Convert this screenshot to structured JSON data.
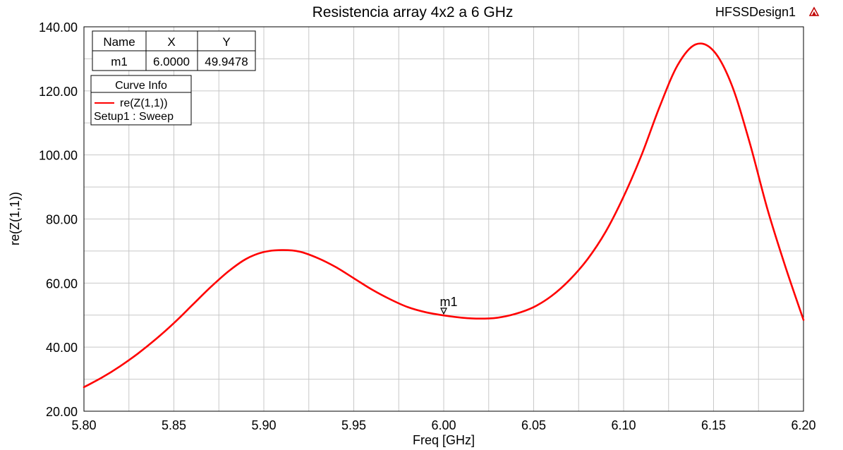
{
  "app": {
    "design_name": "HFSSDesign1",
    "logo_icon": "ansys-logo-icon"
  },
  "chart_data": {
    "type": "line",
    "title": "Resistencia array 4x2 a 6 GHz",
    "xlabel": "Freq [GHz]",
    "ylabel": "re(Z(1,1))",
    "xlim": [
      5.8,
      6.2
    ],
    "ylim": [
      20,
      140
    ],
    "grid": true,
    "x_ticks": [
      5.8,
      5.85,
      5.9,
      5.95,
      6.0,
      6.05,
      6.1,
      6.15,
      6.2
    ],
    "x_tick_labels": [
      "5.80",
      "5.85",
      "5.90",
      "5.95",
      "6.00",
      "6.05",
      "6.10",
      "6.15",
      "6.20"
    ],
    "y_ticks": [
      20,
      40,
      60,
      80,
      100,
      120,
      140
    ],
    "y_tick_labels": [
      "20.00",
      "40.00",
      "60.00",
      "80.00",
      "100.00",
      "120.00",
      "140.00"
    ],
    "series": [
      {
        "name": "re(Z(1,1))",
        "setup": "Setup1 : Sweep",
        "color": "#ff0000",
        "x": [
          5.8,
          5.81,
          5.82,
          5.83,
          5.84,
          5.85,
          5.86,
          5.87,
          5.88,
          5.89,
          5.9,
          5.91,
          5.92,
          5.93,
          5.94,
          5.95,
          5.96,
          5.97,
          5.98,
          5.99,
          6.0,
          6.01,
          6.02,
          6.03,
          6.04,
          6.05,
          6.06,
          6.07,
          6.08,
          6.09,
          6.1,
          6.11,
          6.12,
          6.13,
          6.14,
          6.15,
          6.16,
          6.17,
          6.18,
          6.19,
          6.2
        ],
        "y": [
          27.5,
          30.5,
          34.0,
          38.0,
          42.5,
          47.5,
          53.0,
          58.5,
          63.5,
          67.5,
          69.7,
          70.3,
          69.8,
          67.8,
          65.0,
          61.5,
          58.0,
          55.0,
          52.5,
          50.9,
          49.9,
          49.2,
          48.9,
          49.2,
          50.4,
          52.5,
          56.0,
          61.0,
          67.5,
          76.0,
          87.0,
          100.0,
          115.0,
          128.0,
          134.5,
          132.5,
          122.0,
          104.0,
          83.0,
          65.0,
          48.5
        ]
      }
    ],
    "markers": [
      {
        "name": "m1",
        "x": 6.0,
        "y": 49.9478
      }
    ]
  },
  "marker_table": {
    "headers": [
      "Name",
      "X",
      "Y"
    ],
    "rows": [
      {
        "name": "m1",
        "x": "6.0000",
        "y": "49.9478"
      }
    ]
  },
  "legend": {
    "title": "Curve Info",
    "entry": "re(Z(1,1))",
    "setup": "Setup1 : Sweep",
    "placement": "top-left"
  }
}
